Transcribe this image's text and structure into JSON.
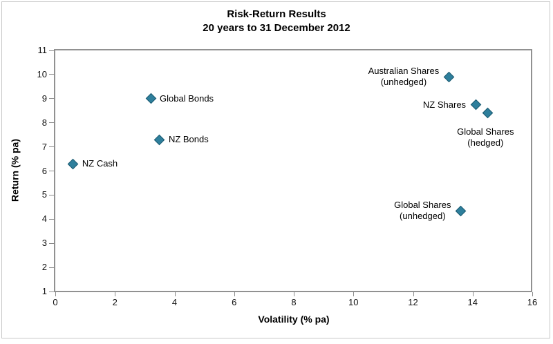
{
  "title": {
    "line1": "Risk-Return Results",
    "line2": "20 years to 31 December 2012"
  },
  "chart_data": {
    "type": "scatter",
    "title": "Risk-Return Results",
    "subtitle": "20 years to 31 December 2012",
    "xlabel": "Volatility (% pa)",
    "ylabel": "Return (% pa)",
    "xlim": [
      0,
      16
    ],
    "ylim": [
      1,
      11
    ],
    "xticks": [
      0,
      2,
      4,
      6,
      8,
      10,
      12,
      14,
      16
    ],
    "yticks": [
      1,
      2,
      3,
      4,
      5,
      6,
      7,
      8,
      9,
      10,
      11
    ],
    "grid": false,
    "legend": false,
    "marker": {
      "shape": "diamond",
      "color": "#2e7f9c",
      "border_color": "#1c5a70"
    },
    "points": [
      {
        "label": "NZ Cash",
        "x": 0.6,
        "y": 6.3,
        "label_lines": [
          "NZ Cash"
        ],
        "placement": "right"
      },
      {
        "label": "Global Bonds",
        "x": 3.2,
        "y": 9.0,
        "label_lines": [
          "Global Bonds"
        ],
        "placement": "right"
      },
      {
        "label": "NZ Bonds",
        "x": 3.5,
        "y": 7.3,
        "label_lines": [
          "NZ Bonds"
        ],
        "placement": "right"
      },
      {
        "label": "Australian Shares (unhedged)",
        "x": 13.2,
        "y": 9.9,
        "label_lines": [
          "Australian Shares",
          "(unhedged)"
        ],
        "placement": "left"
      },
      {
        "label": "NZ Shares",
        "x": 14.1,
        "y": 8.75,
        "label_lines": [
          "NZ Shares"
        ],
        "placement": "left"
      },
      {
        "label": "Global Shares (hedged)",
        "x": 14.5,
        "y": 8.4,
        "label_lines": [
          "Global Shares",
          "(hedged)"
        ],
        "placement": "below"
      },
      {
        "label": "Global Shares (unhedged)",
        "x": 13.6,
        "y": 4.35,
        "label_lines": [
          "Global Shares",
          "(unhedged)"
        ],
        "placement": "left"
      }
    ]
  }
}
